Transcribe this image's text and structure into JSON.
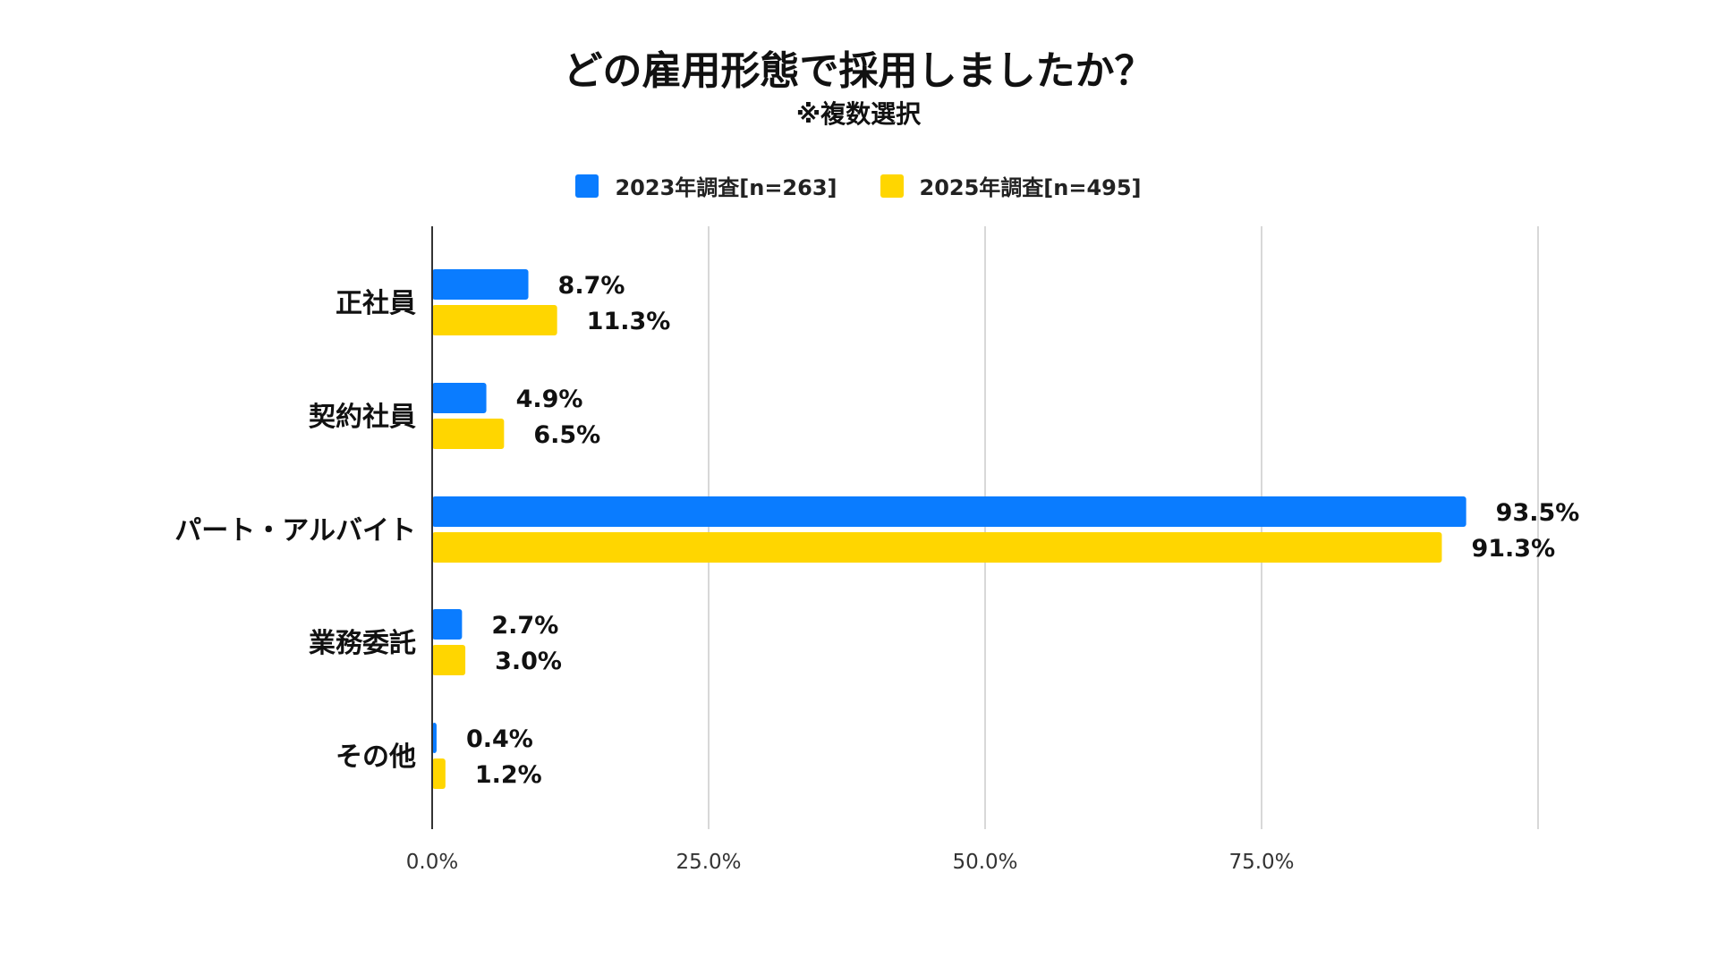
{
  "chart_data": {
    "type": "bar",
    "orientation": "horizontal",
    "title": "どの雇用形態で採用しましたか？",
    "subtitle": "※複数選択",
    "categories": [
      "正社員",
      "契約社員",
      "パート・アルバイト",
      "業務委託",
      "その他"
    ],
    "series": [
      {
        "name": "2023年調査[n=263]",
        "color": "#0a7cff",
        "values": [
          8.7,
          4.9,
          93.5,
          2.7,
          0.4
        ],
        "labels": [
          "8.7%",
          "4.9%",
          "93.5%",
          "2.7%",
          "0.4%"
        ]
      },
      {
        "name": "2025年調査[n=495]",
        "color": "#ffd600",
        "values": [
          11.3,
          6.5,
          91.3,
          3.0,
          1.2
        ],
        "labels": [
          "11.3%",
          "6.5%",
          "91.3%",
          "3.0%",
          "1.2%"
        ]
      }
    ],
    "x_ticks": [
      0,
      25,
      50,
      75
    ],
    "x_tick_labels": [
      "0.0%",
      "25.0%",
      "50.0%",
      "75.0%"
    ],
    "xlim": [
      0,
      100
    ],
    "grid": true,
    "legend_position": "top-center"
  }
}
